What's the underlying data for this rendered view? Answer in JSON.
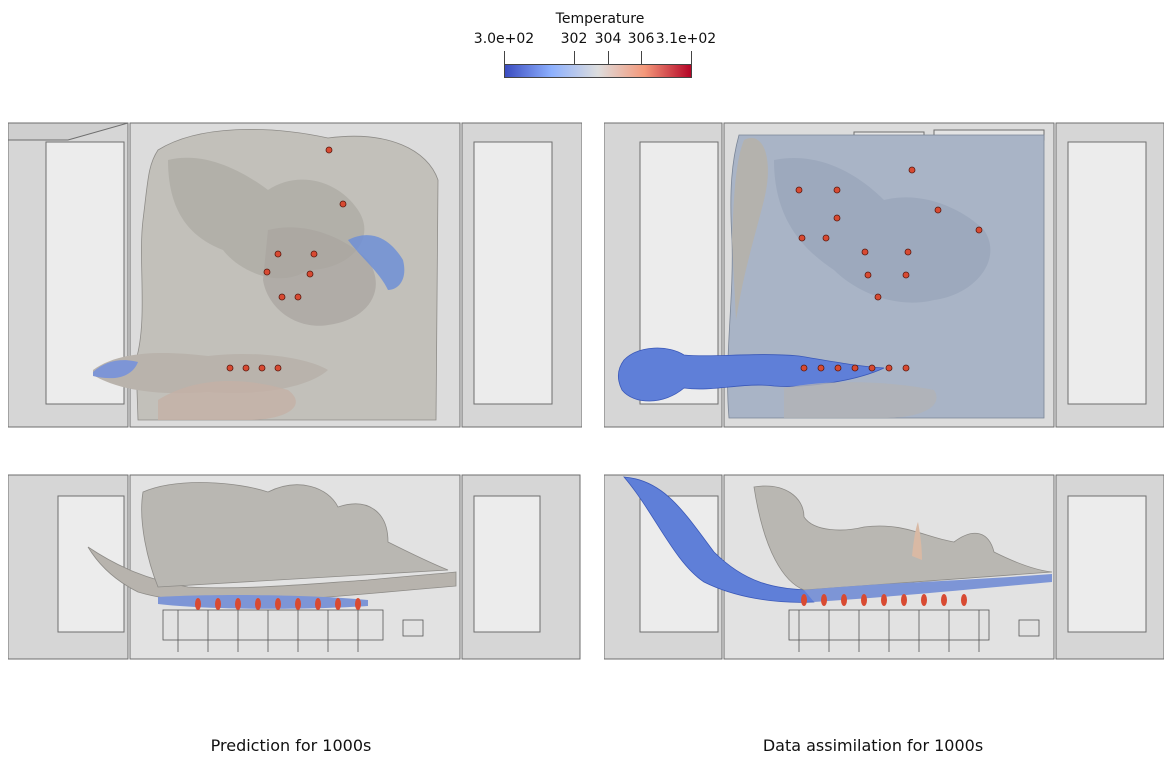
{
  "colorbar": {
    "title": "Temperature",
    "ticks": [
      "3.0e+02",
      "302",
      "304",
      "306",
      "3.1e+02"
    ],
    "colors": [
      "#3b4cc0",
      "#8db0fe",
      "#dddddd",
      "#f4987a",
      "#b40426"
    ]
  },
  "panels": {
    "left_caption": "Prediction for 1000s",
    "right_caption": "Data assimilation for 1000s"
  },
  "palette": {
    "room_wall": "#d2d2d2",
    "room_floor": "#e8e8e8",
    "iso_gray": "#b8b6b0",
    "iso_blue": "#a7b6cc",
    "plume_blue": "#5f7fd8",
    "hot": "#d84a32"
  }
}
